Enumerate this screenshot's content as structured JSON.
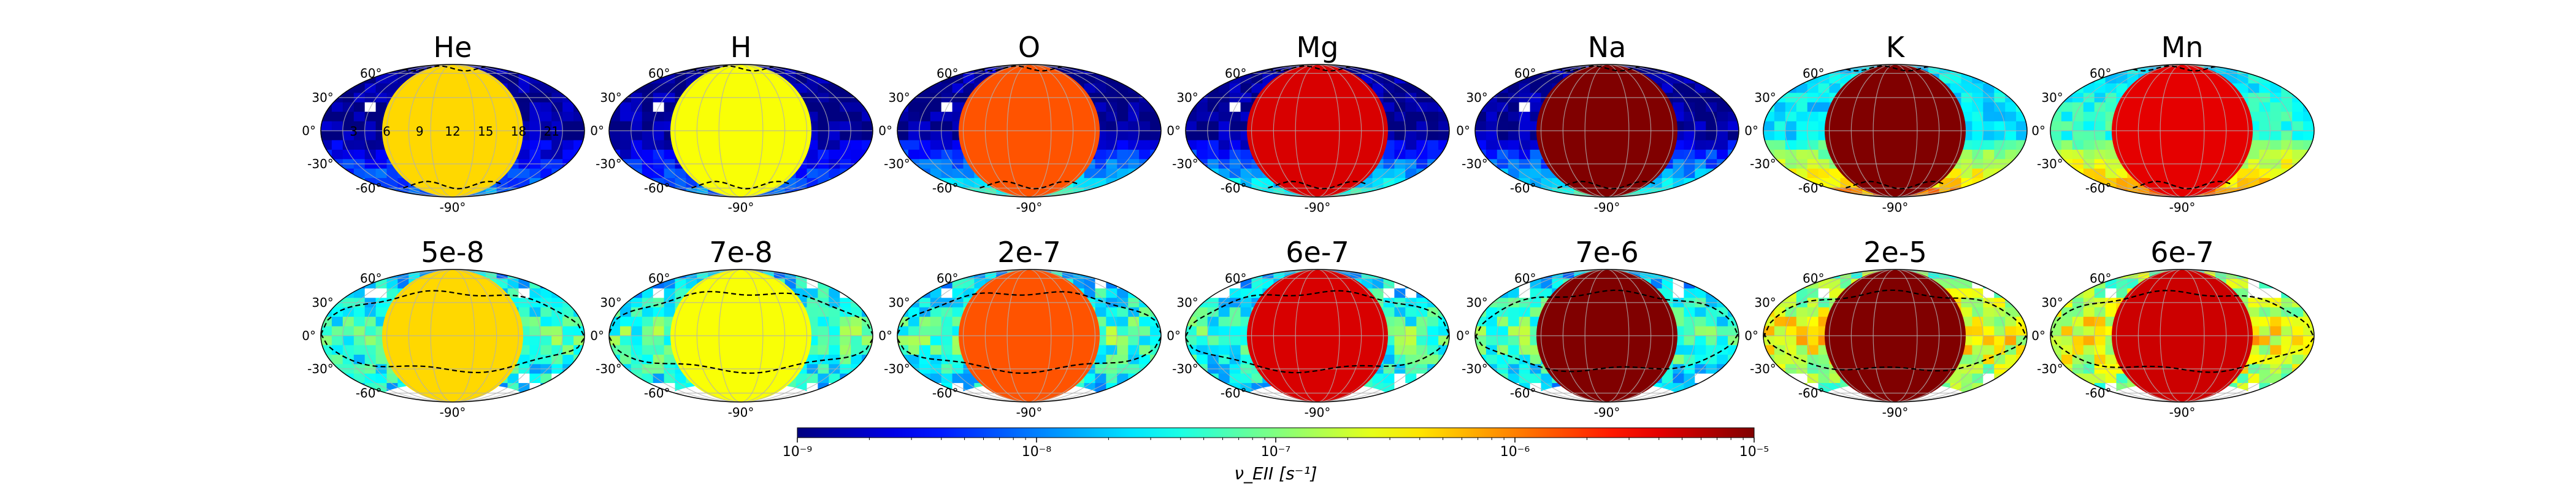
{
  "chart_data": {
    "type": "heatmap",
    "projection": "mollweide",
    "grid_lon_every_deg": 30,
    "grid_lat_every_deg": 30,
    "lat_tick_labels": [
      "60°",
      "30°",
      "0°",
      "-30°",
      "-60°",
      "-90°"
    ],
    "lon_tick_labels": [
      "3",
      "6",
      "9",
      "12",
      "15",
      "18",
      "21"
    ],
    "row1_titles": [
      "He",
      "H",
      "O",
      "Mg",
      "Na",
      "K",
      "Mn"
    ],
    "row2_titles": [
      "5e-8",
      "7e-8",
      "2e-7",
      "6e-7",
      "7e-6",
      "2e-5",
      "6e-7"
    ],
    "dayside_values": [
      4.5e-07,
      3e-07,
      1.5e-06,
      4.5e-06,
      1e-05,
      1e-05,
      4e-06
    ],
    "row2_dayside_values": [
      4.5e-07,
      3e-07,
      1.5e-06,
      4.5e-06,
      1e-05,
      1e-05,
      5e-06
    ],
    "colorbar": {
      "colormap": "jet",
      "scale": "log",
      "min": 1e-09,
      "max": 1e-05,
      "tick_labels": [
        "10⁻⁹",
        "10⁻⁸",
        "10⁻⁷",
        "10⁻⁶",
        "10⁻⁵"
      ],
      "label": "ν_EII [s⁻¹]"
    }
  }
}
